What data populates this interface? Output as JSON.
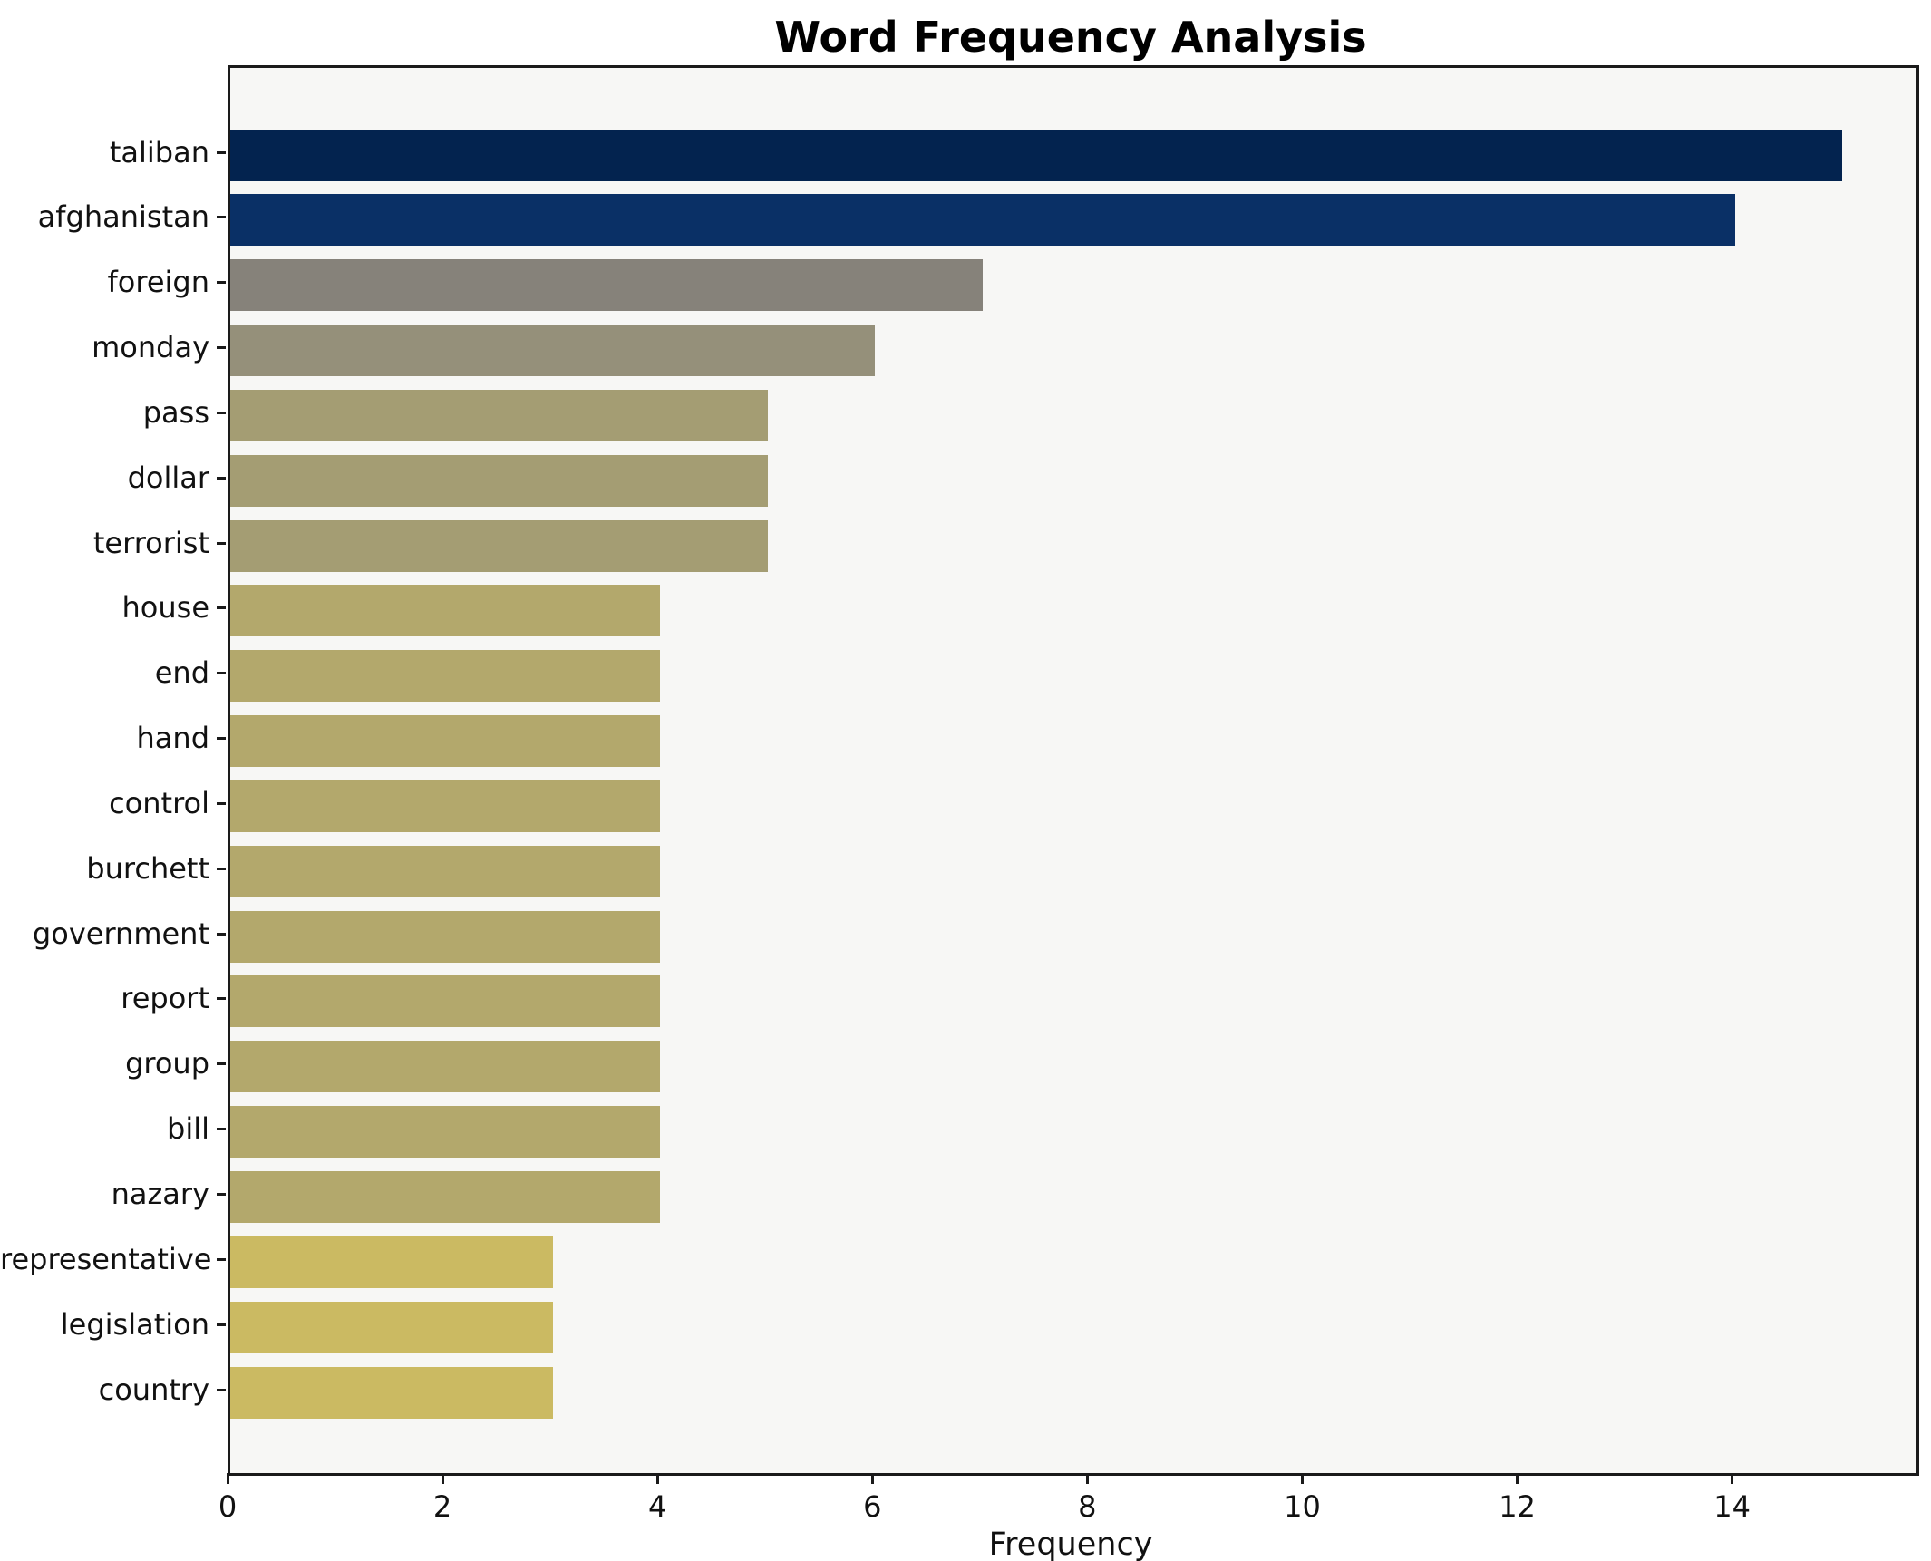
{
  "figure": {
    "background": "#ffffff",
    "plot_background": "#f7f7f5",
    "spine_color": "#1a1a1a",
    "text_color": "#111111"
  },
  "chart_data": {
    "type": "bar",
    "orientation": "horizontal",
    "title": "Word Frequency Analysis",
    "xlabel": "Frequency",
    "ylabel": "",
    "categories": [
      "taliban",
      "afghanistan",
      "foreign",
      "monday",
      "pass",
      "dollar",
      "terrorist",
      "house",
      "end",
      "hand",
      "control",
      "burchett",
      "government",
      "report",
      "group",
      "bill",
      "nazary",
      "representative",
      "legislation",
      "country"
    ],
    "values": [
      15,
      14,
      7,
      6,
      5,
      5,
      5,
      4,
      4,
      4,
      4,
      4,
      4,
      4,
      4,
      4,
      4,
      3,
      3,
      3
    ],
    "bar_colors": [
      "#03234f",
      "#0a3066",
      "#86827a",
      "#95907a",
      "#a49d73",
      "#a49d73",
      "#a49d73",
      "#b3a86c",
      "#b3a86c",
      "#b3a86c",
      "#b3a86c",
      "#b3a86c",
      "#b3a86c",
      "#b3a86c",
      "#b3a86c",
      "#b3a86c",
      "#b3a86c",
      "#cbba62",
      "#cbba62",
      "#cbba62"
    ],
    "xticks": [
      0,
      2,
      4,
      6,
      8,
      10,
      12,
      14
    ],
    "xlim": [
      0,
      15.69
    ],
    "grid": false,
    "legend": null,
    "bar_height_ratio": 0.8
  }
}
